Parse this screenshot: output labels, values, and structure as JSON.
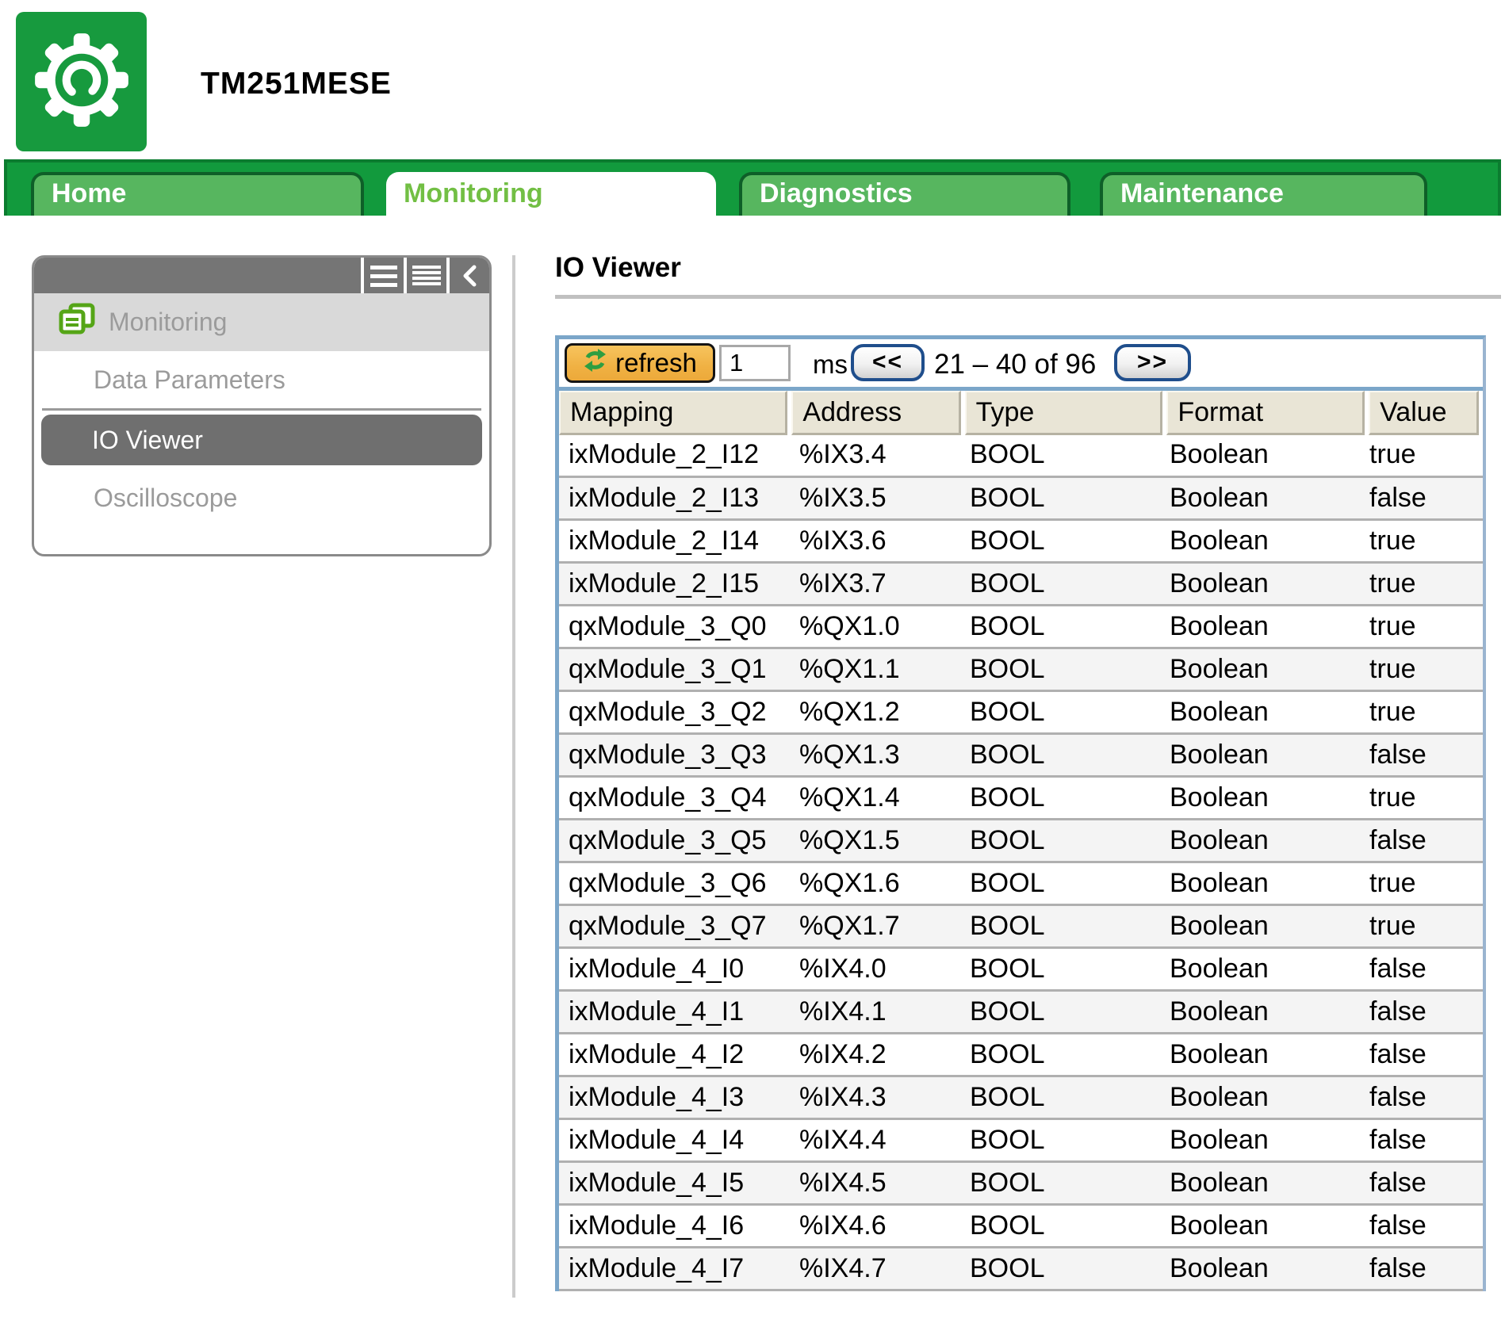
{
  "device": {
    "name": "TM251MESE"
  },
  "tabs": [
    {
      "label": "Home",
      "active": false
    },
    {
      "label": "Monitoring",
      "active": true
    },
    {
      "label": "Diagnostics",
      "active": false
    },
    {
      "label": "Maintenance",
      "active": false
    }
  ],
  "sidebar": {
    "group": {
      "label": "Monitoring",
      "icon": "documents-icon"
    },
    "header_icons": [
      "list-icon",
      "dense-list-icon",
      "collapse-chevron-icon"
    ],
    "items": [
      {
        "label": "Data Parameters",
        "selected": false
      },
      {
        "label": "IO Viewer",
        "selected": true
      },
      {
        "label": "Oscilloscope",
        "selected": false
      }
    ]
  },
  "main": {
    "title": "IO Viewer",
    "toolbar": {
      "refresh_label": "refresh",
      "refresh_icon": "refresh-icon",
      "interval_value": "1",
      "interval_unit": "ms",
      "prev_label": "<<",
      "range_label": "21 – 40 of 96",
      "next_label": ">>"
    },
    "table": {
      "columns": [
        "Mapping",
        "Address",
        "Type",
        "Format",
        "Value"
      ],
      "rows": [
        {
          "mapping": "ixModule_2_I12",
          "address": "%IX3.4",
          "type": "BOOL",
          "format": "Boolean",
          "value": "true"
        },
        {
          "mapping": "ixModule_2_I13",
          "address": "%IX3.5",
          "type": "BOOL",
          "format": "Boolean",
          "value": "false"
        },
        {
          "mapping": "ixModule_2_I14",
          "address": "%IX3.6",
          "type": "BOOL",
          "format": "Boolean",
          "value": "true"
        },
        {
          "mapping": "ixModule_2_I15",
          "address": "%IX3.7",
          "type": "BOOL",
          "format": "Boolean",
          "value": "true"
        },
        {
          "mapping": "qxModule_3_Q0",
          "address": "%QX1.0",
          "type": "BOOL",
          "format": "Boolean",
          "value": "true"
        },
        {
          "mapping": "qxModule_3_Q1",
          "address": "%QX1.1",
          "type": "BOOL",
          "format": "Boolean",
          "value": "true"
        },
        {
          "mapping": "qxModule_3_Q2",
          "address": "%QX1.2",
          "type": "BOOL",
          "format": "Boolean",
          "value": "true"
        },
        {
          "mapping": "qxModule_3_Q3",
          "address": "%QX1.3",
          "type": "BOOL",
          "format": "Boolean",
          "value": "false"
        },
        {
          "mapping": "qxModule_3_Q4",
          "address": "%QX1.4",
          "type": "BOOL",
          "format": "Boolean",
          "value": "true"
        },
        {
          "mapping": "qxModule_3_Q5",
          "address": "%QX1.5",
          "type": "BOOL",
          "format": "Boolean",
          "value": "false"
        },
        {
          "mapping": "qxModule_3_Q6",
          "address": "%QX1.6",
          "type": "BOOL",
          "format": "Boolean",
          "value": "true"
        },
        {
          "mapping": "qxModule_3_Q7",
          "address": "%QX1.7",
          "type": "BOOL",
          "format": "Boolean",
          "value": "true"
        },
        {
          "mapping": "ixModule_4_I0",
          "address": "%IX4.0",
          "type": "BOOL",
          "format": "Boolean",
          "value": "false"
        },
        {
          "mapping": "ixModule_4_I1",
          "address": "%IX4.1",
          "type": "BOOL",
          "format": "Boolean",
          "value": "false"
        },
        {
          "mapping": "ixModule_4_I2",
          "address": "%IX4.2",
          "type": "BOOL",
          "format": "Boolean",
          "value": "false"
        },
        {
          "mapping": "ixModule_4_I3",
          "address": "%IX4.3",
          "type": "BOOL",
          "format": "Boolean",
          "value": "false"
        },
        {
          "mapping": "ixModule_4_I4",
          "address": "%IX4.4",
          "type": "BOOL",
          "format": "Boolean",
          "value": "false"
        },
        {
          "mapping": "ixModule_4_I5",
          "address": "%IX4.5",
          "type": "BOOL",
          "format": "Boolean",
          "value": "false"
        },
        {
          "mapping": "ixModule_4_I6",
          "address": "%IX4.6",
          "type": "BOOL",
          "format": "Boolean",
          "value": "false"
        },
        {
          "mapping": "ixModule_4_I7",
          "address": "%IX4.7",
          "type": "BOOL",
          "format": "Boolean",
          "value": "false"
        }
      ]
    }
  },
  "colors": {
    "brand_green": "#179a3e",
    "bar_green": "#129a3d",
    "tab_green": "#57b65f",
    "tab_border_green": "#0e5f28",
    "active_tab_text": "#72bf44",
    "table_border_blue": "#7ba6c9",
    "header_cell_bg": "#e9e5d6",
    "refresh_button_bg": "#f0b143",
    "refresh_icon_green": "#2f9e41",
    "pager_border_blue": "#1f4e8c",
    "selected_item_bg": "#6f6f6f",
    "sidebar_text_gray": "#9b9b9b"
  }
}
